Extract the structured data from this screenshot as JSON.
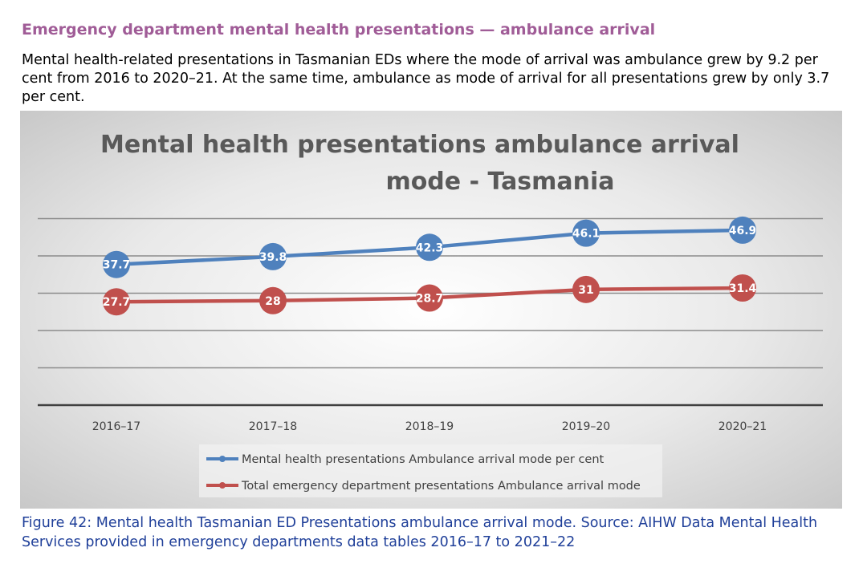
{
  "page": {
    "heading": "Emergency department mental health presentations — ambulance arrival",
    "intro": "Mental health-related presentations in Tasmanian EDs where the mode of arrival was ambulance grew by 9.2 per cent from 2016 to 2020–21. At the same time, ambulance as mode of arrival for all presentations grew by only 3.7 per cent.",
    "caption": "Figure 42: Mental health Tasmanian ED Presentations ambulance arrival mode. Source: AIHW Data Mental Health Services provided in emergency departments data tables 2016–17 to 2021–22"
  },
  "chart_data": {
    "type": "line",
    "title_lines": [
      "Mental health presentations ambulance arrival",
      "mode - Tasmania"
    ],
    "categories": [
      "2016–17",
      "2017–18",
      "2018–19",
      "2019–20",
      "2020–21"
    ],
    "series": [
      {
        "name": "Mental health presentations Ambulance arrival mode per cent",
        "values": [
          37.7,
          39.8,
          42.3,
          46.1,
          46.9
        ],
        "color": "#4f81bd"
      },
      {
        "name": "Total emergency department presentations Ambulance arrival mode",
        "values": [
          27.7,
          28,
          28.7,
          31,
          31.4
        ],
        "color": "#c0504d"
      }
    ],
    "ylim": [
      0,
      50
    ],
    "grid": true,
    "legend": "bottom",
    "data_labels": true
  }
}
